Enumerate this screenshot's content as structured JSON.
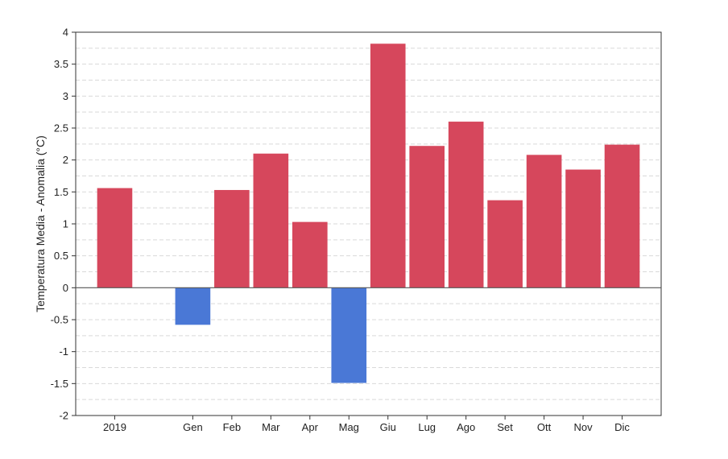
{
  "chart_data": {
    "type": "bar",
    "categories": [
      "2019",
      "Gen",
      "Feb",
      "Mar",
      "Apr",
      "Mag",
      "Giu",
      "Lug",
      "Ago",
      "Set",
      "Ott",
      "Nov",
      "Dic"
    ],
    "slots": [
      0,
      2,
      3,
      4,
      5,
      6,
      7,
      8,
      9,
      10,
      11,
      12,
      13
    ],
    "values": [
      1.56,
      -0.58,
      1.53,
      2.1,
      1.03,
      -1.49,
      3.82,
      2.22,
      2.6,
      1.37,
      2.08,
      1.85,
      2.24
    ],
    "ylabel": "Temperatura Media - Anomalia (°C)",
    "xlabel": "",
    "title": "",
    "ylim": [
      -2,
      4
    ],
    "yticks": [
      4,
      3.5,
      3,
      2.5,
      2,
      1.5,
      1,
      0.5,
      0,
      -0.5,
      -1,
      -1.5,
      -2
    ],
    "ytick_labels": [
      "4",
      "3.5",
      "3",
      "2.5",
      "2",
      "1.5",
      "1",
      "0.5",
      "0",
      "-0.5",
      "-1",
      "-1.5",
      "-2"
    ],
    "minor_grid_step": 0.25,
    "grid": true,
    "legend": "none"
  },
  "colors": {
    "positive": "#d6475c",
    "negative": "#4a78d6",
    "grid": "#d9d9d9",
    "axis": "#333333",
    "zero_line": "#555555"
  }
}
